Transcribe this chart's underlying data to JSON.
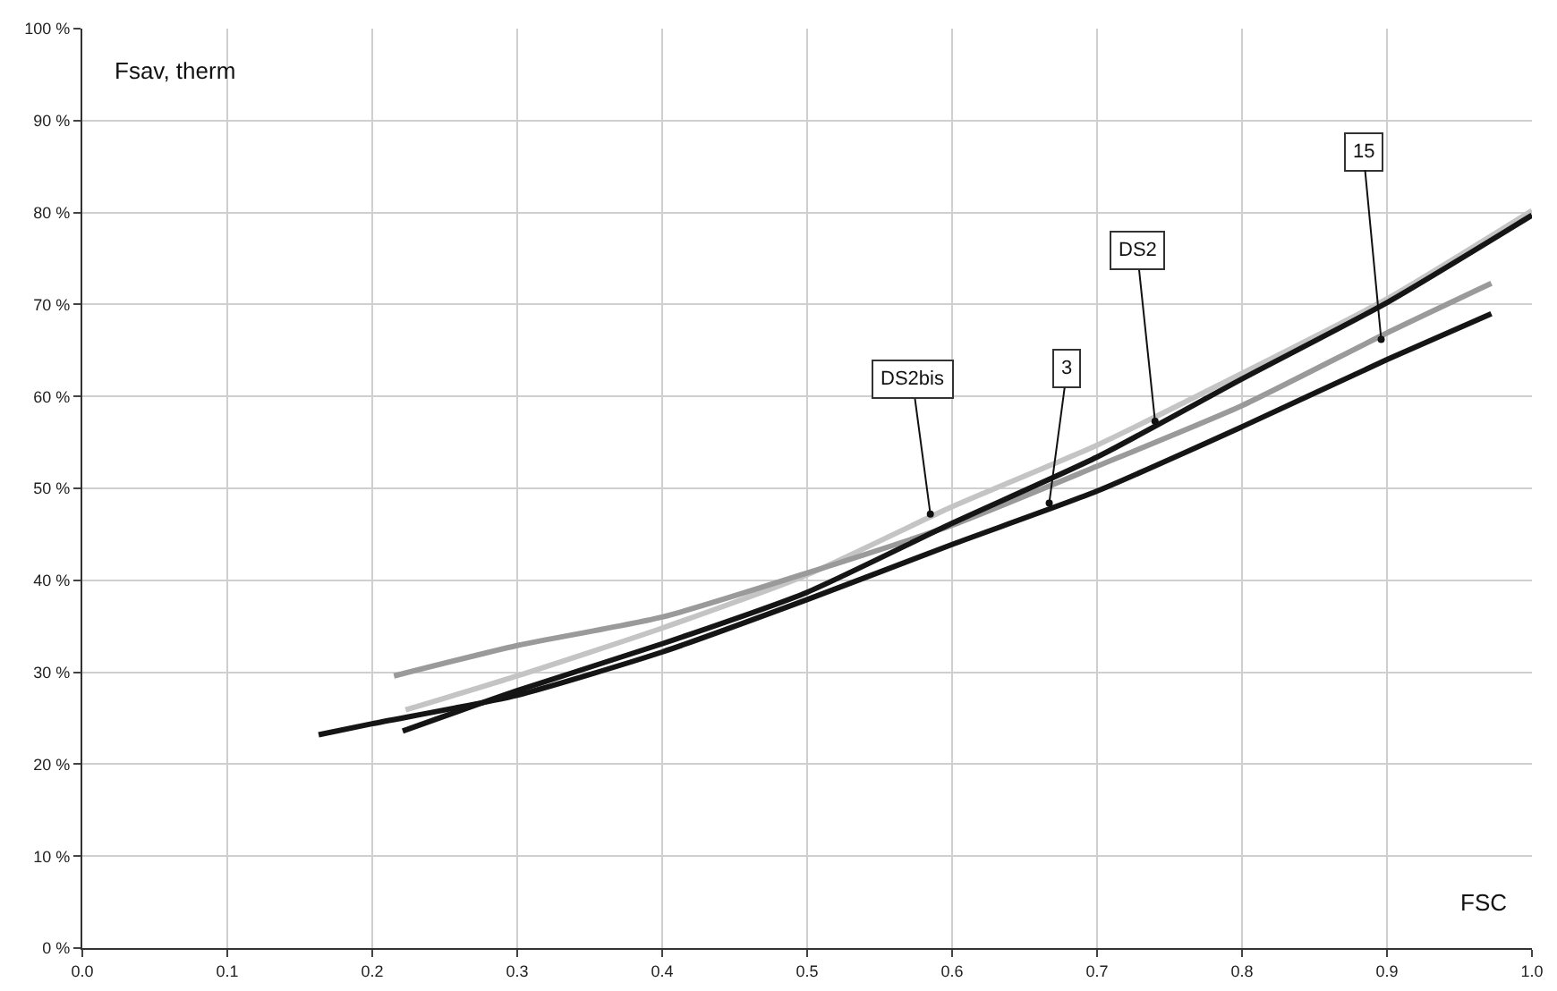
{
  "chart_data": {
    "type": "line",
    "xlabel": "FSC",
    "ylabel": "Fsav, therm",
    "xlim": [
      0,
      1
    ],
    "ylim": [
      0,
      100
    ],
    "xticks": [
      {
        "value": 0,
        "label": "0.0"
      },
      0.1,
      0.2,
      0.3,
      0.4,
      0.5,
      0.6,
      0.7,
      0.8,
      0.9,
      {
        "value": 1,
        "label": "1.0"
      }
    ],
    "yticks": [
      {
        "value": 0,
        "label": "0 %"
      },
      {
        "value": 10,
        "label": "10 %"
      },
      {
        "value": 20,
        "label": "20 %"
      },
      {
        "value": 30,
        "label": "30 %"
      },
      {
        "value": 40,
        "label": "40 %"
      },
      {
        "value": 50,
        "label": "50 %"
      },
      {
        "value": 60,
        "label": "60 %"
      },
      {
        "value": 70,
        "label": "70 %"
      },
      {
        "value": 80,
        "label": "80 %"
      },
      {
        "value": 90,
        "label": "90 %"
      },
      {
        "value": 100,
        "label": "100 %"
      }
    ],
    "grid": true,
    "marker": "none",
    "line_style": "solid",
    "series": [
      {
        "color": "#c4c4c4",
        "x": [
          0.223,
          0.3,
          0.4,
          0.5,
          0.6,
          0.7,
          0.8,
          0.9,
          1.0
        ],
        "values": [
          25.9,
          29.6,
          34.8,
          40.6,
          48.0,
          54.7,
          62.5,
          70.6,
          80.2
        ]
      },
      {
        "color": "#9a9a9a",
        "x": [
          0.215,
          0.3,
          0.4,
          0.5,
          0.6,
          0.7,
          0.8,
          0.9,
          0.972
        ],
        "values": [
          29.6,
          32.9,
          36.0,
          40.8,
          46.0,
          52.4,
          59.0,
          66.9,
          72.3
        ]
      },
      {
        "color": "#151515",
        "x": [
          0.163,
          0.2,
          0.3,
          0.4,
          0.5,
          0.6,
          0.7,
          0.8,
          0.9,
          0.972
        ],
        "values": [
          23.2,
          24.4,
          27.5,
          32.2,
          37.9,
          43.9,
          49.7,
          56.7,
          64.0,
          69.0
        ]
      },
      {
        "color": "#151515",
        "x": [
          0.221,
          0.3,
          0.4,
          0.5,
          0.6,
          0.7,
          0.8,
          0.9,
          1.0
        ],
        "values": [
          23.6,
          28.0,
          33.1,
          38.7,
          46.2,
          53.4,
          61.9,
          70.2,
          79.7
        ]
      }
    ],
    "annotations": [
      {
        "text": "DS2bis",
        "x": 0.585,
        "y": 47.2
      },
      {
        "text": "3",
        "x": 0.667,
        "y": 48.4
      },
      {
        "text": "DS2",
        "x": 0.74,
        "y": 57.3
      },
      {
        "text": "15",
        "x": 0.896,
        "y": 66.2
      }
    ]
  }
}
